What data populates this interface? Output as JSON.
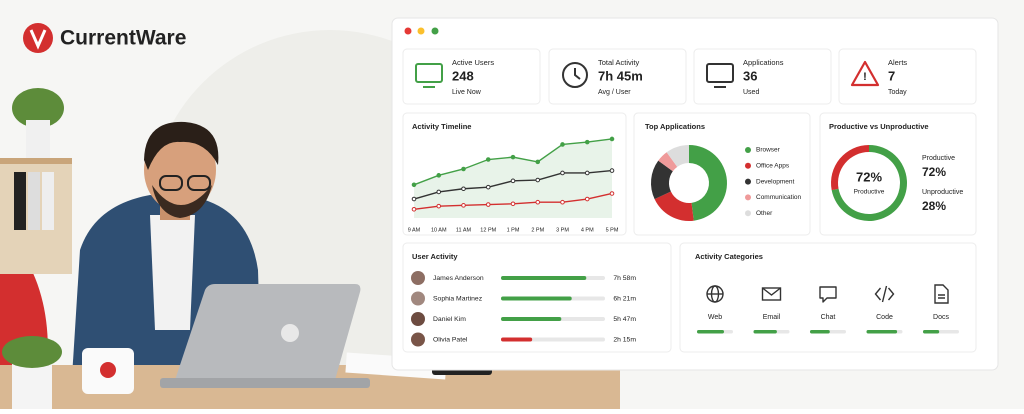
{
  "brand": {
    "name": "CurrentWare"
  },
  "cards": [
    {
      "label": "Active Users",
      "value": 248,
      "sub": "Live Now",
      "color": "#3a9a3f"
    },
    {
      "label": "Total Activity",
      "value": "7h 45m",
      "sub": "Avg / User",
      "color": "#3a9a3f"
    },
    {
      "label": "Applications",
      "value": 36,
      "sub": "Used",
      "color": "#3a9a3f"
    },
    {
      "label": "Alerts",
      "value": 7,
      "sub": "Today",
      "color": "#d42a2a"
    }
  ],
  "timeline": {
    "title": "Activity Timeline",
    "labels": [
      "9 AM",
      "10 AM",
      "11 AM",
      "12 PM",
      "1 PM",
      "2 PM",
      "3 PM",
      "4 PM",
      "5 PM"
    ],
    "ylim": [
      0,
      105
    ],
    "series": [
      {
        "color": "#43a047",
        "values": [
          42,
          54,
          62,
          74,
          77,
          71,
          93,
          96,
          100
        ]
      },
      {
        "color": "#333333",
        "values": [
          24,
          33,
          37,
          39,
          47,
          48,
          57,
          57,
          60
        ]
      },
      {
        "color": "#d32f2f",
        "values": [
          11,
          15,
          16,
          17,
          18,
          20,
          20,
          24,
          31
        ]
      }
    ]
  },
  "apps": {
    "title": "Top Applications",
    "items": [
      {
        "name": "Browser",
        "color": "#43a047",
        "value": 48
      },
      {
        "name": "Office Apps",
        "color": "#d32f2f",
        "value": 20
      },
      {
        "name": "Development",
        "color": "#333333",
        "value": 17
      },
      {
        "name": "Communication",
        "color": "#ef9a9a",
        "value": 5
      },
      {
        "name": "Other",
        "color": "#dddddd",
        "value": 10
      }
    ]
  },
  "productive": {
    "title": "Productive vs Unproductive",
    "center": {
      "value": 72,
      "label": "72%"
    },
    "center_caption": "Productive",
    "items": [
      {
        "name": "Productive",
        "value": 72,
        "label": "72%",
        "color": "#43a047"
      },
      {
        "name": "Unproductive",
        "value": 28,
        "label": "28%",
        "color": "#d32f2f"
      }
    ]
  },
  "users": {
    "title": "User Activity",
    "rows": [
      {
        "name": "James Anderson",
        "time": "7h 58m",
        "share": 0.82,
        "color": "#43a047"
      },
      {
        "name": "Sophia Martinez",
        "time": "6h 21m",
        "share": 0.68,
        "color": "#43a047"
      },
      {
        "name": "Daniel Kim",
        "time": "5h 47m",
        "share": 0.58,
        "color": "#43a047"
      },
      {
        "name": "Olivia Patel",
        "time": "2h 15m",
        "share": 0.3,
        "color": "#d32f2f"
      }
    ]
  },
  "categories": {
    "title": "Activity Categories",
    "items": [
      {
        "name": "Web",
        "share": 0.75
      },
      {
        "name": "Email",
        "share": 0.65
      },
      {
        "name": "Chat",
        "share": 0.55
      },
      {
        "name": "Code",
        "share": 0.85
      },
      {
        "name": "Docs",
        "share": 0.45
      }
    ]
  }
}
